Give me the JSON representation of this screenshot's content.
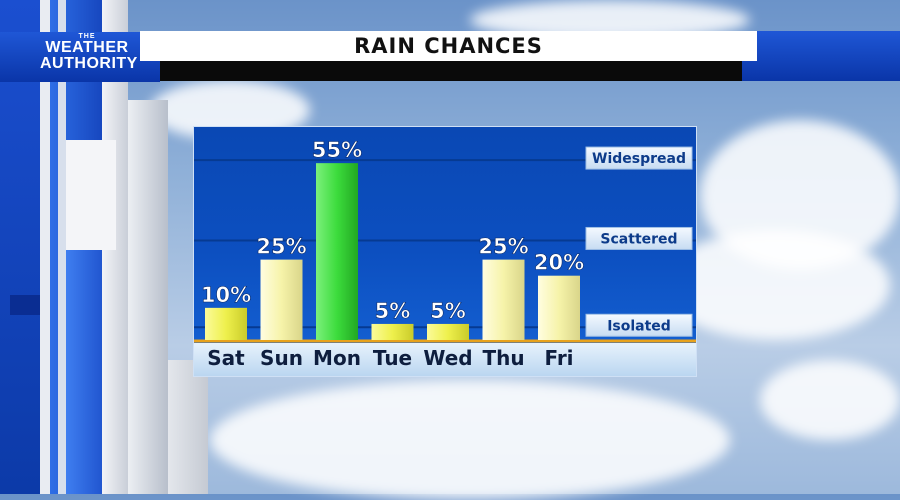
{
  "header": {
    "logo_the": "THE",
    "logo_line1": "WEATHER",
    "logo_line2": "AUTHORITY",
    "title": "RAIN CHANCES"
  },
  "chart_data": {
    "type": "bar",
    "title": "RAIN CHANCES",
    "categories": [
      "Sat",
      "Sun",
      "Mon",
      "Tue",
      "Wed",
      "Thu",
      "Fri"
    ],
    "values": [
      10,
      25,
      55,
      5,
      5,
      25,
      20
    ],
    "value_labels": [
      "10%",
      "25%",
      "55%",
      "5%",
      "5%",
      "25%",
      "20%"
    ],
    "unit": "%",
    "ylim": [
      0,
      65
    ],
    "levels": [
      {
        "label": "Widespread",
        "value": 60
      },
      {
        "label": "Scattered",
        "value": 35
      },
      {
        "label": "Isolated",
        "value": 8
      }
    ],
    "colors": {
      "normal_bar": "#f6f3a9",
      "low_bar": "#eef04c",
      "highlight_bar": "#3cdc3c",
      "panel_top": "#0a48b4",
      "baseline": "#e8a21c",
      "label_box_text": "#0d3b8a"
    },
    "highlight_category": "Mon",
    "grid": true,
    "legend": "none"
  }
}
